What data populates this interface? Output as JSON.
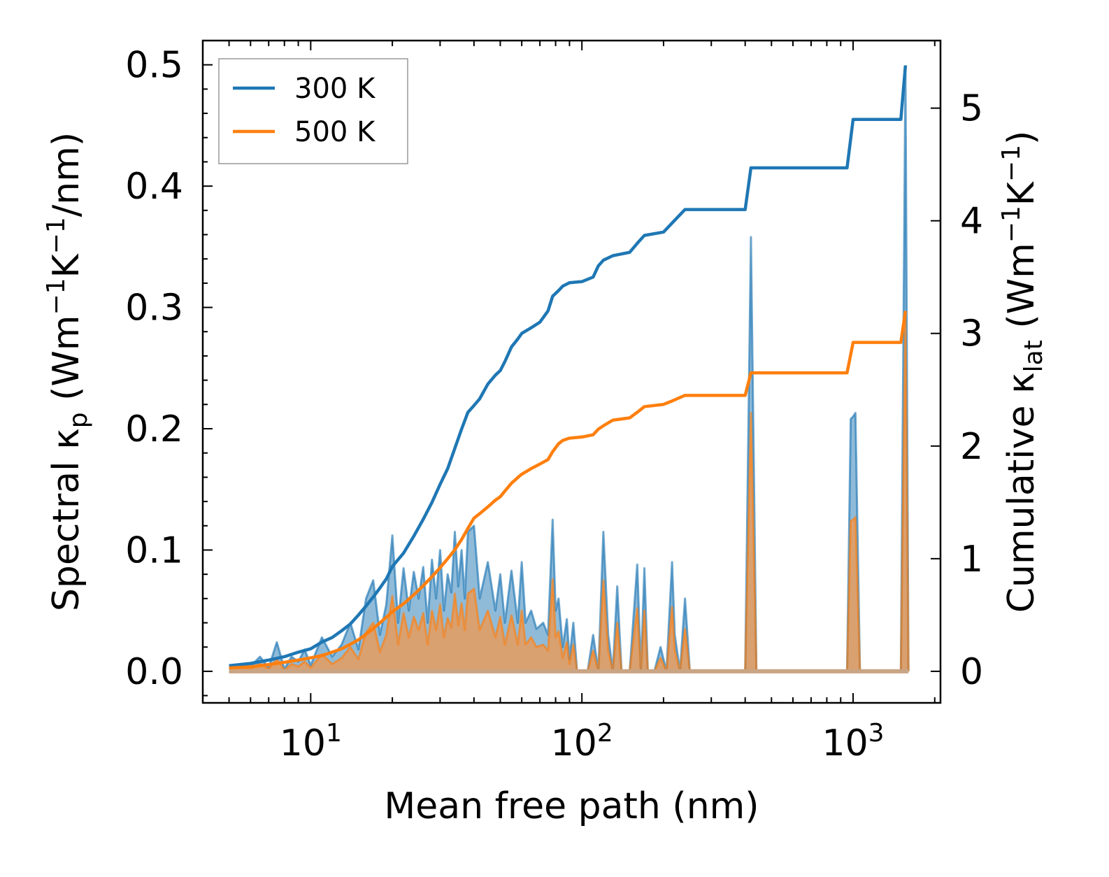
{
  "chart_data": {
    "type": "line",
    "xlabel": "Mean free path (nm)",
    "ylabel_left": {
      "base": "Spectral κ",
      "sub": "p",
      "units_pre": " (Wm",
      "sup1": "−1",
      "units_mid": "K",
      "sup2": "−1",
      "units_post": "/nm)"
    },
    "ylabel_right": {
      "base": "Cumulative κ",
      "sub": "lat",
      "units_pre": " (Wm",
      "sup1": "−1",
      "units_mid": "K",
      "sup2": "−1",
      "units_post": ")"
    },
    "xscale": "log",
    "xlim": [
      4,
      2100
    ],
    "ylim_left": [
      -0.026,
      0.52
    ],
    "ylim_right": [
      -0.28,
      5.6
    ],
    "x_ticks": [
      {
        "value": 10,
        "base": "10",
        "exp": "1"
      },
      {
        "value": 100,
        "base": "10",
        "exp": "2"
      },
      {
        "value": 1000,
        "base": "10",
        "exp": "3"
      }
    ],
    "yticks_left": [
      0.0,
      0.1,
      0.2,
      0.3,
      0.4,
      0.5
    ],
    "yticks_left_labels": [
      "0.0",
      "0.1",
      "0.2",
      "0.3",
      "0.4",
      "0.5"
    ],
    "yticks_right": [
      0,
      1,
      2,
      3,
      4,
      5
    ],
    "yticks_right_labels": [
      "0",
      "1",
      "2",
      "3",
      "4",
      "5"
    ],
    "legend": {
      "position": "top-left",
      "entries": [
        "300 K",
        "500 K"
      ]
    },
    "colors": {
      "s300": "#1f77b4",
      "s500": "#ff7f0e",
      "fill300": "#1f77b4",
      "fill500": "#d9a070"
    },
    "spectral": [
      {
        "name": "300 K",
        "points": [
          [
            5,
            0.003
          ],
          [
            5.5,
            0.006
          ],
          [
            6,
            0.004
          ],
          [
            6.5,
            0.012
          ],
          [
            7,
            0.003
          ],
          [
            7.5,
            0.024
          ],
          [
            8,
            0.002
          ],
          [
            8.5,
            0.012
          ],
          [
            9,
            0.008
          ],
          [
            9.5,
            0.018
          ],
          [
            10,
            0.005
          ],
          [
            11,
            0.028
          ],
          [
            12,
            0.012
          ],
          [
            13,
            0.022
          ],
          [
            14,
            0.04
          ],
          [
            15,
            0.018
          ],
          [
            16,
            0.06
          ],
          [
            17,
            0.075
          ],
          [
            18,
            0.03
          ],
          [
            19,
            0.055
          ],
          [
            20,
            0.112
          ],
          [
            21,
            0.04
          ],
          [
            22,
            0.085
          ],
          [
            23,
            0.05
          ],
          [
            24,
            0.082
          ],
          [
            25,
            0.06
          ],
          [
            26,
            0.086
          ],
          [
            27,
            0.04
          ],
          [
            28,
            0.092
          ],
          [
            29,
            0.06
          ],
          [
            30,
            0.1
          ],
          [
            31,
            0.05
          ],
          [
            32,
            0.08
          ],
          [
            33,
            0.065
          ],
          [
            34,
            0.115
          ],
          [
            35,
            0.07
          ],
          [
            36,
            0.1
          ],
          [
            37,
            0.06
          ],
          [
            38,
            0.115
          ],
          [
            40,
            0.12
          ],
          [
            42,
            0.06
          ],
          [
            45,
            0.09
          ],
          [
            48,
            0.05
          ],
          [
            50,
            0.08
          ],
          [
            52,
            0.04
          ],
          [
            55,
            0.083
          ],
          [
            58,
            0.04
          ],
          [
            60,
            0.09
          ],
          [
            62,
            0.04
          ],
          [
            65,
            0.05
          ],
          [
            68,
            0.035
          ],
          [
            72,
            0.04
          ],
          [
            75,
            0.03
          ],
          [
            78,
            0.125
          ],
          [
            80,
            0.05
          ],
          [
            82,
            0.06
          ],
          [
            85,
            0.02
          ],
          [
            88,
            0.043
          ],
          [
            90,
            0.01
          ],
          [
            93,
            0.04
          ],
          [
            96,
            0.0
          ],
          [
            105,
            0.0
          ],
          [
            110,
            0.03
          ],
          [
            115,
            0.0
          ],
          [
            120,
            0.115
          ],
          [
            125,
            0.03
          ],
          [
            130,
            0.0
          ],
          [
            135,
            0.07
          ],
          [
            140,
            0.0
          ],
          [
            150,
            0.0
          ],
          [
            160,
            0.088
          ],
          [
            165,
            0.0
          ],
          [
            170,
            0.085
          ],
          [
            175,
            0.0
          ],
          [
            185,
            0.0
          ],
          [
            195,
            0.02
          ],
          [
            205,
            0.0
          ],
          [
            215,
            0.09
          ],
          [
            220,
            0.03
          ],
          [
            230,
            0.0
          ],
          [
            240,
            0.06
          ],
          [
            250,
            0.0
          ],
          [
            400,
            0.0
          ],
          [
            420,
            0.358
          ],
          [
            440,
            0.0
          ],
          [
            950,
            0.0
          ],
          [
            980,
            0.208
          ],
          [
            1000,
            0.21
          ],
          [
            1020,
            0.213
          ],
          [
            1060,
            0.0
          ],
          [
            1500,
            0.0
          ],
          [
            1560,
            0.497
          ],
          [
            1600,
            0.0
          ]
        ]
      },
      {
        "name": "500 K",
        "points": [
          [
            5,
            0.002
          ],
          [
            5.5,
            0.003
          ],
          [
            6,
            0.002
          ],
          [
            6.5,
            0.006
          ],
          [
            7,
            0.002
          ],
          [
            7.5,
            0.01
          ],
          [
            8,
            0.001
          ],
          [
            8.5,
            0.006
          ],
          [
            9,
            0.004
          ],
          [
            9.5,
            0.008
          ],
          [
            10,
            0.003
          ],
          [
            11,
            0.014
          ],
          [
            12,
            0.006
          ],
          [
            13,
            0.011
          ],
          [
            14,
            0.02
          ],
          [
            15,
            0.01
          ],
          [
            16,
            0.032
          ],
          [
            17,
            0.04
          ],
          [
            18,
            0.016
          ],
          [
            19,
            0.03
          ],
          [
            20,
            0.062
          ],
          [
            21,
            0.022
          ],
          [
            22,
            0.048
          ],
          [
            23,
            0.028
          ],
          [
            24,
            0.045
          ],
          [
            25,
            0.034
          ],
          [
            26,
            0.048
          ],
          [
            27,
            0.022
          ],
          [
            28,
            0.05
          ],
          [
            29,
            0.034
          ],
          [
            30,
            0.055
          ],
          [
            31,
            0.028
          ],
          [
            32,
            0.044
          ],
          [
            33,
            0.036
          ],
          [
            34,
            0.064
          ],
          [
            35,
            0.038
          ],
          [
            36,
            0.056
          ],
          [
            37,
            0.034
          ],
          [
            38,
            0.064
          ],
          [
            40,
            0.068
          ],
          [
            42,
            0.034
          ],
          [
            45,
            0.05
          ],
          [
            48,
            0.028
          ],
          [
            50,
            0.045
          ],
          [
            52,
            0.022
          ],
          [
            55,
            0.046
          ],
          [
            58,
            0.022
          ],
          [
            60,
            0.05
          ],
          [
            62,
            0.022
          ],
          [
            65,
            0.028
          ],
          [
            68,
            0.02
          ],
          [
            72,
            0.022
          ],
          [
            75,
            0.017
          ],
          [
            78,
            0.076
          ],
          [
            80,
            0.028
          ],
          [
            82,
            0.033
          ],
          [
            85,
            0.011
          ],
          [
            88,
            0.024
          ],
          [
            90,
            0.006
          ],
          [
            93,
            0.022
          ],
          [
            96,
            0.0
          ],
          [
            105,
            0.0
          ],
          [
            110,
            0.017
          ],
          [
            115,
            0.0
          ],
          [
            120,
            0.075
          ],
          [
            125,
            0.017
          ],
          [
            130,
            0.0
          ],
          [
            135,
            0.04
          ],
          [
            140,
            0.0
          ],
          [
            150,
            0.0
          ],
          [
            160,
            0.052
          ],
          [
            165,
            0.0
          ],
          [
            170,
            0.05
          ],
          [
            175,
            0.0
          ],
          [
            185,
            0.0
          ],
          [
            195,
            0.011
          ],
          [
            205,
            0.0
          ],
          [
            215,
            0.053
          ],
          [
            220,
            0.017
          ],
          [
            230,
            0.0
          ],
          [
            240,
            0.035
          ],
          [
            250,
            0.0
          ],
          [
            400,
            0.0
          ],
          [
            420,
            0.213
          ],
          [
            440,
            0.0
          ],
          [
            950,
            0.0
          ],
          [
            980,
            0.124
          ],
          [
            1000,
            0.125
          ],
          [
            1020,
            0.127
          ],
          [
            1060,
            0.0
          ],
          [
            1500,
            0.0
          ],
          [
            1560,
            0.295
          ],
          [
            1600,
            0.0
          ]
        ]
      }
    ],
    "cumulative": [
      {
        "name": "300 K",
        "points": [
          [
            5,
            0.05
          ],
          [
            6,
            0.07
          ],
          [
            7,
            0.1
          ],
          [
            8,
            0.13
          ],
          [
            9,
            0.17
          ],
          [
            10,
            0.2
          ],
          [
            11,
            0.26
          ],
          [
            12,
            0.3
          ],
          [
            13,
            0.36
          ],
          [
            14,
            0.42
          ],
          [
            15,
            0.5
          ],
          [
            16,
            0.58
          ],
          [
            17,
            0.66
          ],
          [
            18,
            0.74
          ],
          [
            19,
            0.82
          ],
          [
            20,
            0.93
          ],
          [
            22,
            1.05
          ],
          [
            24,
            1.2
          ],
          [
            26,
            1.35
          ],
          [
            28,
            1.5
          ],
          [
            30,
            1.66
          ],
          [
            32,
            1.8
          ],
          [
            34,
            1.98
          ],
          [
            36,
            2.15
          ],
          [
            38,
            2.3
          ],
          [
            40,
            2.36
          ],
          [
            42,
            2.42
          ],
          [
            45,
            2.55
          ],
          [
            48,
            2.63
          ],
          [
            50,
            2.67
          ],
          [
            52,
            2.75
          ],
          [
            55,
            2.88
          ],
          [
            58,
            2.95
          ],
          [
            60,
            3.0
          ],
          [
            65,
            3.05
          ],
          [
            70,
            3.1
          ],
          [
            75,
            3.2
          ],
          [
            78,
            3.33
          ],
          [
            82,
            3.38
          ],
          [
            85,
            3.42
          ],
          [
            90,
            3.45
          ],
          [
            100,
            3.46
          ],
          [
            110,
            3.5
          ],
          [
            115,
            3.6
          ],
          [
            120,
            3.65
          ],
          [
            130,
            3.69
          ],
          [
            150,
            3.72
          ],
          [
            160,
            3.8
          ],
          [
            170,
            3.87
          ],
          [
            200,
            3.9
          ],
          [
            215,
            3.98
          ],
          [
            240,
            4.1
          ],
          [
            400,
            4.1
          ],
          [
            420,
            4.47
          ],
          [
            950,
            4.47
          ],
          [
            1000,
            4.9
          ],
          [
            1500,
            4.9
          ],
          [
            1560,
            5.38
          ]
        ]
      },
      {
        "name": "500 K",
        "points": [
          [
            5,
            0.03
          ],
          [
            6,
            0.04
          ],
          [
            7,
            0.06
          ],
          [
            8,
            0.08
          ],
          [
            9,
            0.1
          ],
          [
            10,
            0.12
          ],
          [
            11,
            0.14
          ],
          [
            12,
            0.17
          ],
          [
            13,
            0.2
          ],
          [
            14,
            0.24
          ],
          [
            15,
            0.28
          ],
          [
            16,
            0.33
          ],
          [
            17,
            0.38
          ],
          [
            18,
            0.43
          ],
          [
            19,
            0.48
          ],
          [
            20,
            0.53
          ],
          [
            22,
            0.6
          ],
          [
            24,
            0.68
          ],
          [
            26,
            0.76
          ],
          [
            28,
            0.84
          ],
          [
            30,
            0.92
          ],
          [
            32,
            1.0
          ],
          [
            34,
            1.08
          ],
          [
            36,
            1.17
          ],
          [
            38,
            1.27
          ],
          [
            40,
            1.36
          ],
          [
            42,
            1.4
          ],
          [
            45,
            1.46
          ],
          [
            48,
            1.52
          ],
          [
            50,
            1.55
          ],
          [
            52,
            1.6
          ],
          [
            55,
            1.67
          ],
          [
            58,
            1.72
          ],
          [
            60,
            1.75
          ],
          [
            65,
            1.8
          ],
          [
            70,
            1.84
          ],
          [
            75,
            1.88
          ],
          [
            78,
            1.95
          ],
          [
            82,
            2.02
          ],
          [
            85,
            2.05
          ],
          [
            90,
            2.07
          ],
          [
            100,
            2.08
          ],
          [
            110,
            2.1
          ],
          [
            115,
            2.15
          ],
          [
            120,
            2.18
          ],
          [
            130,
            2.23
          ],
          [
            150,
            2.25
          ],
          [
            160,
            2.3
          ],
          [
            170,
            2.35
          ],
          [
            200,
            2.37
          ],
          [
            215,
            2.4
          ],
          [
            240,
            2.45
          ],
          [
            400,
            2.45
          ],
          [
            420,
            2.65
          ],
          [
            950,
            2.65
          ],
          [
            1000,
            2.92
          ],
          [
            1500,
            2.92
          ],
          [
            1560,
            3.2
          ]
        ]
      }
    ]
  }
}
